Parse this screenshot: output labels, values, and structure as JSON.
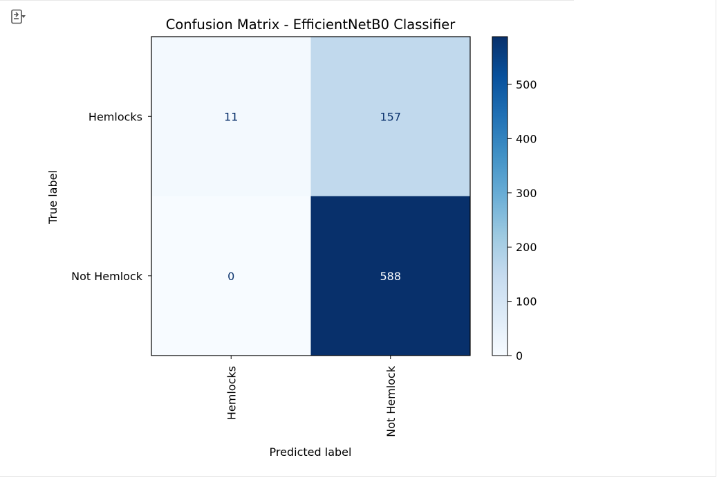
{
  "output_toggle_icon": "output-collapse-icon",
  "chart_data": {
    "type": "heatmap",
    "title": "Confusion Matrix - EfficientNetB0 Classifier",
    "xlabel": "Predicted label",
    "ylabel": "True label",
    "x_categories": [
      "Hemlocks",
      "Not Hemlock"
    ],
    "y_categories": [
      "Hemlocks",
      "Not Hemlock"
    ],
    "values": [
      [
        11,
        157
      ],
      [
        0,
        588
      ]
    ],
    "colormap": "Blues",
    "colorbar": {
      "min": 0,
      "max": 588,
      "ticks": [
        0,
        100,
        200,
        300,
        400,
        500
      ]
    },
    "colors": {
      "low": "#f7fbff",
      "high": "#08306b",
      "text_dark_bg": "#ffffff",
      "text_light_bg": "#08306b"
    },
    "grid": false
  }
}
